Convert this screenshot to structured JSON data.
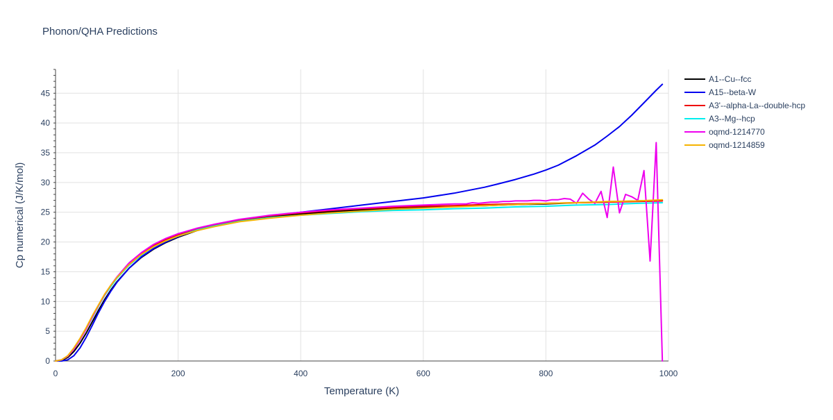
{
  "chart_data": {
    "type": "line",
    "title": "Phonon/QHA Predictions",
    "xlabel": "Temperature (K)",
    "ylabel": "Cp numerical (J/K/mol)",
    "xlim": [
      0,
      1000
    ],
    "ylim": [
      0,
      49
    ],
    "xticks": [
      0,
      200,
      400,
      600,
      800,
      1000
    ],
    "yticks": [
      0,
      5,
      10,
      15,
      20,
      25,
      30,
      35,
      40,
      45
    ],
    "grid": true,
    "legend_position": "right",
    "series": [
      {
        "name": "A1--Cu--fcc",
        "color": "#000000",
        "x": [
          0,
          10,
          20,
          30,
          40,
          50,
          60,
          70,
          80,
          90,
          100,
          120,
          140,
          160,
          180,
          200,
          230,
          260,
          300,
          350,
          400,
          450,
          500,
          550,
          600,
          650,
          700,
          750,
          800,
          850,
          900,
          950,
          990
        ],
        "y": [
          0,
          0.1,
          0.6,
          1.6,
          3.0,
          4.7,
          6.6,
          8.5,
          10.3,
          11.9,
          13.3,
          15.6,
          17.4,
          18.8,
          19.9,
          20.8,
          21.9,
          22.7,
          23.5,
          24.2,
          24.7,
          25.1,
          25.4,
          25.6,
          25.8,
          26.0,
          26.1,
          26.3,
          26.4,
          26.6,
          26.7,
          26.9,
          27.0
        ]
      },
      {
        "name": "A15--beta-W",
        "color": "#0000ee",
        "x": [
          0,
          10,
          20,
          30,
          40,
          50,
          60,
          70,
          80,
          90,
          100,
          120,
          140,
          160,
          180,
          200,
          230,
          260,
          300,
          350,
          400,
          450,
          500,
          550,
          600,
          650,
          700,
          720,
          750,
          780,
          800,
          820,
          850,
          880,
          900,
          920,
          940,
          960,
          980,
          990
        ],
        "y": [
          0,
          0,
          0.2,
          0.9,
          2.2,
          4.0,
          6.0,
          8.1,
          10.0,
          11.7,
          13.2,
          15.6,
          17.5,
          18.9,
          20.0,
          20.9,
          22.0,
          22.8,
          23.7,
          24.4,
          25.0,
          25.6,
          26.2,
          26.8,
          27.4,
          28.2,
          29.2,
          29.7,
          30.5,
          31.4,
          32.1,
          32.9,
          34.5,
          36.3,
          37.8,
          39.4,
          41.3,
          43.4,
          45.5,
          46.5
        ]
      },
      {
        "name": "A3'--alpha-La--double-hcp",
        "color": "#ee0000",
        "x": [
          0,
          10,
          20,
          30,
          40,
          50,
          60,
          70,
          80,
          90,
          100,
          120,
          140,
          160,
          180,
          200,
          230,
          260,
          300,
          350,
          400,
          450,
          500,
          550,
          600,
          650,
          700,
          750,
          800,
          850,
          900,
          950,
          990
        ],
        "y": [
          0,
          0.2,
          0.8,
          2.0,
          3.6,
          5.4,
          7.4,
          9.3,
          11.1,
          12.6,
          14.0,
          16.3,
          18.0,
          19.4,
          20.4,
          21.2,
          22.2,
          22.9,
          23.7,
          24.4,
          24.9,
          25.3,
          25.6,
          25.8,
          26.0,
          26.1,
          26.3,
          26.4,
          26.5,
          26.6,
          26.7,
          26.8,
          26.9
        ]
      },
      {
        "name": "A3--Mg--hcp",
        "color": "#00eeee",
        "x": [
          0,
          10,
          20,
          30,
          40,
          50,
          60,
          70,
          80,
          90,
          100,
          120,
          140,
          160,
          180,
          200,
          230,
          260,
          300,
          350,
          400,
          450,
          500,
          550,
          600,
          650,
          700,
          750,
          800,
          850,
          900,
          950,
          990
        ],
        "y": [
          0,
          0.2,
          0.8,
          2.0,
          3.6,
          5.4,
          7.3,
          9.2,
          11.0,
          12.5,
          13.9,
          16.1,
          17.8,
          19.2,
          20.2,
          21.0,
          22.0,
          22.7,
          23.5,
          24.1,
          24.5,
          24.8,
          25.1,
          25.3,
          25.4,
          25.6,
          25.7,
          25.9,
          26.0,
          26.2,
          26.3,
          26.5,
          26.6
        ]
      },
      {
        "name": "oqmd-1214770",
        "color": "#ee00ee",
        "x": [
          0,
          10,
          20,
          30,
          40,
          50,
          60,
          70,
          80,
          90,
          100,
          120,
          140,
          160,
          180,
          200,
          230,
          260,
          300,
          350,
          400,
          450,
          500,
          550,
          600,
          650,
          670,
          680,
          690,
          700,
          710,
          720,
          730,
          740,
          750,
          760,
          770,
          780,
          790,
          800,
          810,
          820,
          830,
          840,
          850,
          860,
          870,
          880,
          890,
          900,
          910,
          920,
          930,
          940,
          950,
          960,
          970,
          980,
          990
        ],
        "y": [
          0,
          0.2,
          0.8,
          2.0,
          3.6,
          5.4,
          7.4,
          9.3,
          11.1,
          12.7,
          14.1,
          16.5,
          18.2,
          19.6,
          20.6,
          21.4,
          22.3,
          23.0,
          23.8,
          24.5,
          25.0,
          25.4,
          25.7,
          26.0,
          26.2,
          26.4,
          26.4,
          26.6,
          26.5,
          26.6,
          26.7,
          26.7,
          26.8,
          26.8,
          26.9,
          26.9,
          26.9,
          27.0,
          27.0,
          26.9,
          27.1,
          27.1,
          27.3,
          27.2,
          26.5,
          28.2,
          27.2,
          26.5,
          28.5,
          24.1,
          32.6,
          24.9,
          28.0,
          27.6,
          27.0,
          32.0,
          16.8,
          36.7,
          0
        ]
      },
      {
        "name": "oqmd-1214859",
        "color": "#f5b300",
        "x": [
          0,
          10,
          20,
          30,
          40,
          50,
          60,
          70,
          80,
          90,
          100,
          120,
          140,
          160,
          180,
          200,
          230,
          260,
          300,
          350,
          400,
          450,
          500,
          550,
          600,
          650,
          700,
          750,
          800,
          850,
          900,
          950,
          990
        ],
        "y": [
          0,
          0.2,
          0.9,
          2.2,
          3.8,
          5.6,
          7.6,
          9.4,
          11.2,
          12.7,
          14.0,
          16.2,
          17.9,
          19.2,
          20.2,
          21.0,
          21.9,
          22.6,
          23.4,
          24.0,
          24.5,
          24.9,
          25.2,
          25.5,
          25.7,
          25.9,
          26.1,
          26.3,
          26.5,
          26.6,
          26.8,
          26.9,
          27.1
        ]
      }
    ]
  }
}
